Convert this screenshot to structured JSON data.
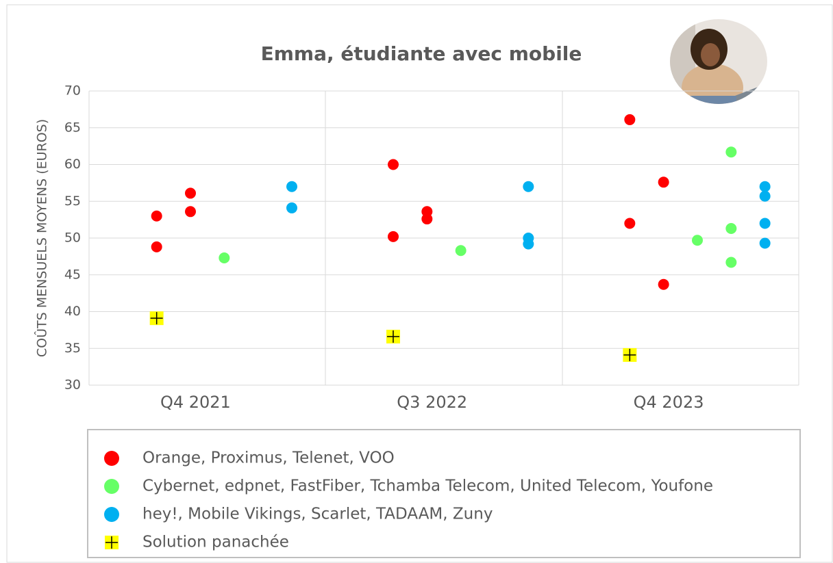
{
  "chart_data": {
    "type": "scatter",
    "title": "Emma, étudiante avec mobile",
    "y_label": "COÛTS MENSUELS MOYENS (EUROS)",
    "categories": [
      "Q4 2021",
      "Q3 2022",
      "Q4 2023"
    ],
    "xlim": [
      0,
      21
    ],
    "ylim": [
      30,
      70
    ],
    "yticks": [
      30,
      35,
      40,
      45,
      50,
      55,
      60,
      65,
      70
    ],
    "grid": true,
    "series": [
      {
        "name": "Orange, Proximus, Telenet, VOO",
        "color": "#ff0000",
        "marker": "circle",
        "x": [
          2,
          2,
          3,
          3,
          9,
          9,
          10,
          10,
          16,
          16,
          17,
          17
        ],
        "values": [
          53.0,
          48.8,
          56.1,
          53.6,
          60.0,
          50.2,
          53.6,
          52.6,
          66.1,
          52.0,
          57.6,
          43.7
        ]
      },
      {
        "name": "Cybernet, edpnet, FastFiber, Tchamba Telecom, United Telecom, Youfone",
        "color": "#66ff66",
        "marker": "circle",
        "x": [
          4,
          11,
          18,
          19,
          19,
          19
        ],
        "values": [
          47.3,
          48.3,
          49.7,
          61.7,
          51.3,
          46.7
        ]
      },
      {
        "name": "hey!, Mobile Vikings, Scarlet, TADAAM, Zuny",
        "color": "#00b0f0",
        "marker": "circle",
        "x": [
          6,
          6,
          13,
          13,
          13,
          20,
          20,
          20,
          20
        ],
        "values": [
          57.0,
          54.1,
          57.0,
          50.0,
          49.2,
          57.0,
          55.7,
          52.0,
          49.3
        ]
      },
      {
        "name": "Solution panachée",
        "color": "#ffff00",
        "marker": "square-plus",
        "x": [
          2,
          9,
          16
        ],
        "values": [
          39.1,
          36.6,
          34.1
        ]
      }
    ]
  }
}
